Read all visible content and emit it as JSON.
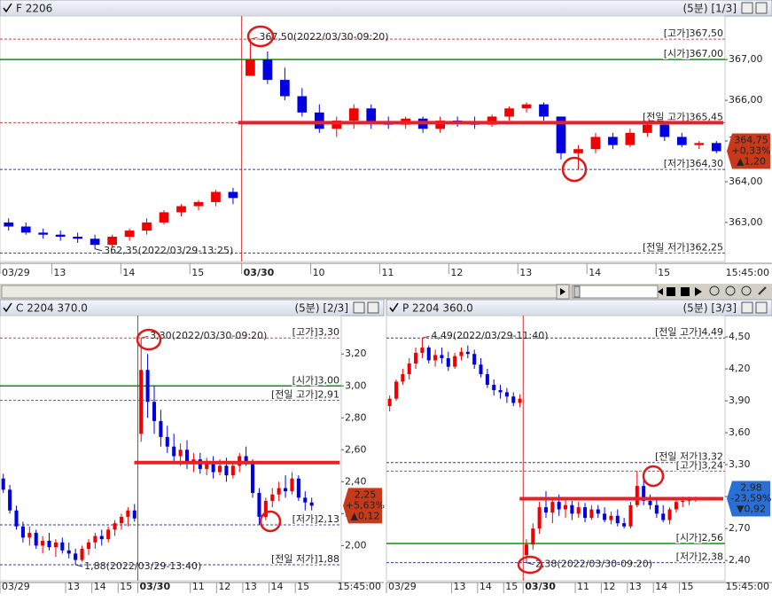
{
  "chart_data": [
    {
      "type": "candlestick",
      "title": "F 2206",
      "period": "(5분) [1/3]",
      "categories": [
        "03/29",
        null,
        null,
        "13",
        null,
        null,
        null,
        "14",
        null,
        null,
        null,
        "15",
        null,
        null,
        "03/30",
        null,
        null,
        null,
        "10",
        null,
        null,
        null,
        "11",
        null,
        null,
        null,
        "12",
        null,
        null,
        null,
        "13",
        null,
        null,
        null,
        "14",
        null,
        null,
        null,
        "15",
        null,
        null,
        null
      ],
      "open": [
        363.0,
        362.9,
        362.75,
        362.7,
        362.65,
        362.6,
        362.45,
        362.65,
        362.8,
        363.0,
        363.25,
        363.4,
        363.5,
        363.75,
        366.6,
        367.0,
        366.5,
        366.1,
        365.7,
        365.3,
        365.5,
        365.8,
        365.45,
        365.4,
        365.55,
        365.3,
        365.5,
        365.45,
        365.4,
        365.6,
        365.8,
        365.9,
        365.6,
        364.7,
        364.8,
        365.1,
        364.9,
        365.2,
        365.4,
        365.1,
        364.9,
        364.95
      ],
      "high": [
        363.1,
        363.0,
        362.85,
        362.8,
        362.75,
        362.7,
        362.7,
        362.85,
        363.1,
        363.3,
        363.45,
        363.55,
        363.8,
        363.85,
        367.5,
        367.2,
        366.8,
        366.3,
        365.9,
        365.6,
        365.9,
        365.9,
        365.6,
        365.6,
        365.6,
        365.6,
        365.6,
        365.6,
        365.65,
        365.85,
        365.95,
        365.95,
        365.6,
        364.9,
        365.2,
        365.2,
        365.3,
        365.45,
        365.45,
        365.2,
        365.0,
        365.0
      ],
      "low": [
        362.8,
        362.7,
        362.6,
        362.55,
        362.5,
        362.35,
        362.4,
        362.55,
        362.7,
        362.95,
        363.15,
        363.3,
        363.4,
        363.45,
        366.6,
        366.4,
        366.0,
        365.6,
        365.2,
        365.1,
        365.3,
        365.3,
        365.3,
        365.3,
        365.2,
        365.2,
        365.35,
        365.3,
        365.35,
        365.5,
        365.7,
        365.5,
        364.55,
        364.3,
        364.7,
        364.8,
        364.85,
        365.1,
        365.0,
        364.85,
        364.8,
        364.7
      ],
      "close": [
        362.9,
        362.75,
        362.7,
        362.65,
        362.6,
        362.45,
        362.65,
        362.8,
        363.0,
        363.25,
        363.4,
        363.5,
        363.75,
        363.6,
        367.0,
        366.5,
        366.1,
        365.7,
        365.3,
        365.5,
        365.8,
        365.45,
        365.4,
        365.55,
        365.3,
        365.5,
        365.45,
        365.4,
        365.6,
        365.8,
        365.9,
        365.6,
        364.7,
        364.8,
        365.1,
        364.9,
        365.2,
        365.4,
        365.1,
        364.9,
        364.95,
        364.75
      ],
      "up_color": "#f00000",
      "down_color": "#0000e0",
      "ylim": [
        362.04,
        368.07
      ],
      "yticks": [
        {
          "value": 363,
          "label": "363,00"
        },
        {
          "value": 364,
          "label": "364,00"
        },
        {
          "value": 365,
          "label": "365,00"
        },
        {
          "value": 366,
          "label": "366,00"
        },
        {
          "value": 367,
          "label": "367,00"
        }
      ],
      "ref_lines": [
        {
          "label": "[고가]367,50",
          "value": 367.5,
          "color": "#d04040",
          "dashed": true
        },
        {
          "label": "[시가]367,00",
          "value": 367.0,
          "color": "#009a00",
          "dashed": false
        },
        {
          "label": "[전일 고가]365,45",
          "value": 365.45,
          "color": "#d04040",
          "dashed": true
        },
        {
          "label": "[저가]364,30",
          "value": 364.3,
          "color": "#3a3aa0",
          "dashed": true
        },
        {
          "label": "[전일 저가]362,25",
          "value": 362.25,
          "color": "#3a3aa0",
          "dashed": true
        }
      ],
      "drawn_line": {
        "value": 365.45,
        "color": "#e8202a"
      },
      "annotations": [
        {
          "text": "367,50(2022/03/30-09:20)",
          "value": 367.5,
          "anchor": "high",
          "color": "#d02020"
        },
        {
          "text": "362,35(2022/03/29-13:25)",
          "value": 362.35,
          "anchor": "low",
          "color": "#2020a0"
        }
      ],
      "badge": {
        "value": 364.75,
        "lines": [
          "364,75",
          "+0,33%",
          "▲1,20"
        ],
        "color": "#c8391a"
      },
      "x_end_label": "15:45:00"
    },
    {
      "type": "candlestick",
      "title": "C 2204 370.0",
      "period": "(5분) [2/3]",
      "categories": [
        "03/29",
        null,
        null,
        null,
        null,
        null,
        null,
        null,
        null,
        null,
        "13",
        null,
        null,
        null,
        "14",
        null,
        null,
        null,
        "15",
        null,
        null,
        "03/30",
        null,
        null,
        null,
        null,
        null,
        null,
        null,
        "11",
        null,
        null,
        null,
        "12",
        null,
        null,
        null,
        "13",
        null,
        null,
        null,
        "14",
        null,
        null,
        null,
        "15",
        null,
        null
      ],
      "open": [
        2.42,
        2.35,
        2.22,
        2.12,
        2.05,
        2.08,
        2.0,
        2.03,
        1.99,
        2.02,
        1.97,
        1.95,
        1.91,
        1.98,
        2.02,
        2.06,
        2.04,
        2.1,
        2.14,
        2.18,
        2.22,
        2.7,
        3.1,
        2.9,
        2.78,
        2.68,
        2.62,
        2.56,
        2.6,
        2.52,
        2.54,
        2.48,
        2.52,
        2.46,
        2.5,
        2.44,
        2.5,
        2.56,
        2.52,
        2.33,
        2.18,
        2.28,
        2.32,
        2.36,
        2.34,
        2.42,
        2.3,
        2.27
      ],
      "high": [
        2.45,
        2.38,
        2.25,
        2.15,
        2.12,
        2.1,
        2.06,
        2.08,
        2.04,
        2.05,
        2.02,
        1.98,
        2.0,
        2.04,
        2.08,
        2.1,
        2.12,
        2.16,
        2.2,
        2.24,
        2.26,
        3.3,
        3.2,
        3.0,
        2.85,
        2.75,
        2.7,
        2.64,
        2.66,
        2.58,
        2.58,
        2.55,
        2.56,
        2.54,
        2.55,
        2.52,
        2.58,
        2.62,
        2.54,
        2.36,
        2.3,
        2.36,
        2.4,
        2.44,
        2.46,
        2.44,
        2.34,
        2.3
      ],
      "low": [
        2.33,
        2.2,
        2.1,
        2.02,
        2.0,
        1.98,
        1.95,
        1.97,
        1.93,
        1.95,
        1.92,
        1.88,
        1.9,
        1.94,
        1.98,
        2.0,
        2.02,
        2.06,
        2.1,
        2.12,
        2.15,
        2.65,
        2.8,
        2.7,
        2.62,
        2.58,
        2.52,
        2.5,
        2.48,
        2.46,
        2.45,
        2.44,
        2.42,
        2.44,
        2.4,
        2.42,
        2.46,
        2.5,
        2.3,
        2.13,
        2.16,
        2.24,
        2.28,
        2.3,
        2.32,
        2.28,
        2.22,
        2.22
      ],
      "close": [
        2.35,
        2.22,
        2.12,
        2.05,
        2.08,
        2.0,
        2.03,
        1.99,
        2.02,
        1.97,
        1.95,
        1.91,
        1.98,
        2.02,
        2.06,
        2.04,
        2.1,
        2.14,
        2.18,
        2.22,
        2.17,
        3.1,
        2.9,
        2.78,
        2.68,
        2.62,
        2.56,
        2.6,
        2.52,
        2.54,
        2.48,
        2.52,
        2.46,
        2.5,
        2.44,
        2.5,
        2.56,
        2.52,
        2.33,
        2.18,
        2.28,
        2.32,
        2.36,
        2.34,
        2.42,
        2.3,
        2.27,
        2.25
      ],
      "up_color": "#f00000",
      "down_color": "#0000e0",
      "ylim": [
        1.78,
        3.44
      ],
      "yticks": [
        {
          "value": 2.0,
          "label": "2,00"
        },
        {
          "value": 2.2,
          "label": "2,20"
        },
        {
          "value": 2.4,
          "label": "2,40"
        },
        {
          "value": 2.6,
          "label": "2,60"
        },
        {
          "value": 2.8,
          "label": "2,80"
        },
        {
          "value": 3.0,
          "label": "3,00"
        },
        {
          "value": 3.2,
          "label": "3,20"
        }
      ],
      "ref_lines": [
        {
          "label": "[고가]3,30",
          "value": 3.3,
          "color": "#d04040",
          "dashed": true
        },
        {
          "label": "[시가]3,00",
          "value": 3.0,
          "color": "#009a00",
          "dashed": false
        },
        {
          "label": "[전일 고가]2,91",
          "value": 2.91,
          "color": "#d04040",
          "dashed": true
        },
        {
          "label": "[저가]2,13",
          "value": 2.13,
          "color": "#3a3aa0",
          "dashed": true
        },
        {
          "label": "[전일 저가]1,88",
          "value": 1.88,
          "color": "#3a3aa0",
          "dashed": true
        }
      ],
      "drawn_line": {
        "value": 2.52,
        "color": "#e8202a"
      },
      "annotations": [
        {
          "text": "3,30(2022/03/30-09:20)",
          "value": 3.3,
          "anchor": "high",
          "color": "#d02020"
        },
        {
          "text": "1,88(2022/03/29-13:40)",
          "value": 1.88,
          "anchor": "low",
          "color": "#2020a0"
        }
      ],
      "badge": {
        "value": 2.25,
        "lines": [
          "2,25",
          "+5,63%",
          "▲0,12"
        ],
        "color": "#c8391a"
      },
      "x_end_label": "15:45:00"
    },
    {
      "type": "candlestick",
      "title": "P 2204 360.0",
      "period": "(5분) [3/3]",
      "categories": [
        "03/29",
        null,
        null,
        null,
        null,
        null,
        null,
        null,
        null,
        null,
        "13",
        null,
        null,
        null,
        "14",
        null,
        null,
        null,
        "15",
        null,
        null,
        "03/30",
        null,
        null,
        null,
        null,
        null,
        null,
        null,
        "11",
        null,
        null,
        null,
        "12",
        null,
        null,
        null,
        "13",
        null,
        null,
        null,
        "14",
        null,
        null,
        null,
        "15",
        null,
        null
      ],
      "open": [
        3.85,
        3.92,
        4.08,
        4.15,
        4.25,
        4.35,
        4.4,
        4.28,
        4.33,
        4.3,
        4.22,
        4.32,
        4.36,
        4.34,
        4.24,
        4.15,
        4.05,
        4.0,
        3.98,
        3.94,
        3.88,
        2.45,
        2.55,
        2.7,
        2.9,
        2.85,
        2.95,
        2.88,
        2.92,
        2.84,
        2.9,
        2.8,
        2.88,
        2.84,
        2.78,
        2.82,
        2.75,
        2.72,
        2.92,
        3.1,
        2.96,
        2.92,
        2.84,
        2.78,
        2.88,
        2.95,
        2.96,
        2.98
      ],
      "high": [
        3.95,
        4.1,
        4.2,
        4.3,
        4.4,
        4.49,
        4.42,
        4.38,
        4.4,
        4.36,
        4.35,
        4.4,
        4.42,
        4.38,
        4.3,
        4.2,
        4.1,
        4.05,
        4.02,
        3.98,
        3.96,
        2.6,
        2.75,
        2.95,
        3.05,
        2.98,
        3.02,
        2.98,
        2.96,
        2.95,
        2.94,
        2.92,
        2.92,
        2.9,
        2.86,
        2.88,
        2.8,
        2.95,
        3.24,
        3.15,
        3.02,
        2.98,
        2.92,
        2.9,
        2.98,
        3.0,
        3.0,
        3.0
      ],
      "low": [
        3.8,
        3.9,
        4.05,
        4.1,
        4.2,
        4.3,
        4.25,
        4.22,
        4.25,
        4.18,
        4.2,
        4.28,
        4.3,
        4.2,
        4.12,
        4.02,
        3.95,
        3.92,
        3.88,
        3.85,
        3.84,
        2.38,
        2.5,
        2.65,
        2.8,
        2.75,
        2.82,
        2.8,
        2.78,
        2.8,
        2.76,
        2.78,
        2.8,
        2.76,
        2.74,
        2.72,
        2.7,
        2.7,
        2.9,
        2.92,
        2.88,
        2.8,
        2.76,
        2.74,
        2.85,
        2.9,
        2.92,
        2.95
      ],
      "close": [
        3.92,
        4.08,
        4.15,
        4.25,
        4.35,
        4.4,
        4.28,
        4.33,
        4.3,
        4.22,
        4.32,
        4.36,
        4.34,
        4.24,
        4.15,
        4.05,
        4.0,
        3.98,
        3.94,
        3.88,
        3.92,
        2.55,
        2.7,
        2.9,
        2.85,
        2.95,
        2.88,
        2.92,
        2.84,
        2.9,
        2.8,
        2.88,
        2.84,
        2.78,
        2.82,
        2.75,
        2.72,
        2.92,
        3.1,
        2.96,
        2.92,
        2.84,
        2.78,
        2.88,
        2.95,
        2.96,
        2.98,
        2.98
      ],
      "up_color": "#f00000",
      "down_color": "#0000e0",
      "ylim": [
        2.21,
        4.7
      ],
      "yticks": [
        {
          "value": 2.4,
          "label": "2,40"
        },
        {
          "value": 2.7,
          "label": "2,70"
        },
        {
          "value": 3.0,
          "label": "3,00"
        },
        {
          "value": 3.3,
          "label": "3,30"
        },
        {
          "value": 3.6,
          "label": "3,60"
        },
        {
          "value": 3.9,
          "label": "3,90"
        },
        {
          "value": 4.2,
          "label": "4,20"
        },
        {
          "value": 4.5,
          "label": "4,50"
        }
      ],
      "ref_lines": [
        {
          "label": "[전일 고가]4,49",
          "value": 4.49,
          "color": "#3a3aa0",
          "dashed": true
        },
        {
          "label": "[전일 저가]3,32",
          "value": 3.32,
          "color": "#3a3aa0",
          "dashed": true
        },
        {
          "label": "[고가]3,24",
          "value": 3.24,
          "color": "#d04040",
          "dashed": true
        },
        {
          "label": "[시가]2,56",
          "value": 2.56,
          "color": "#009a00",
          "dashed": false
        },
        {
          "label": "[저가]2,38",
          "value": 2.38,
          "color": "#3a3aa0",
          "dashed": true
        }
      ],
      "drawn_line": {
        "value": 2.98,
        "color": "#e8202a"
      },
      "annotations": [
        {
          "text": "4,49(2022/03/29-11:40)",
          "value": 4.49,
          "anchor": "high",
          "color": "#d02020"
        },
        {
          "text": "2,38(2022/03/30-09:20)",
          "value": 2.38,
          "anchor": "low",
          "color": "#2020a0"
        }
      ],
      "badge": {
        "value": 2.98,
        "lines": [
          "2,98",
          "-23,59%",
          "▼0,92"
        ],
        "color": "#2a6fd6"
      },
      "x_end_label": "15:45:00"
    }
  ]
}
